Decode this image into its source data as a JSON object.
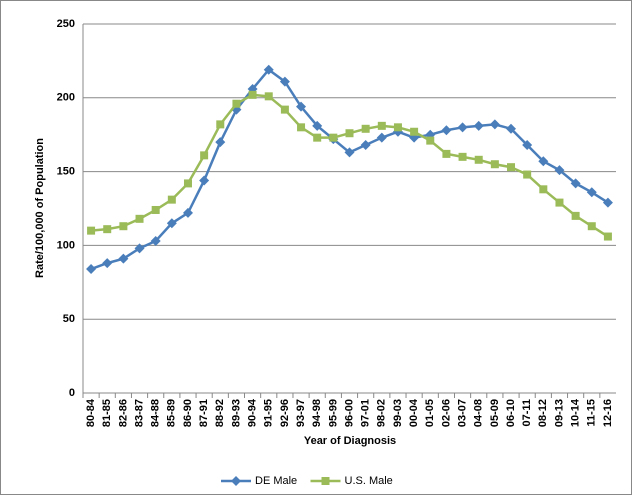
{
  "chart_data": {
    "type": "line",
    "x_label": "Year of Diagnosis",
    "y_label": "Rate/100,000 of Population",
    "categories": [
      "80-84",
      "81-85",
      "82-86",
      "83-87",
      "84-88",
      "85-89",
      "86-90",
      "87-91",
      "88-92",
      "89-93",
      "90-94",
      "91-95",
      "92-96",
      "93-97",
      "94-98",
      "95-99",
      "96-00",
      "97-01",
      "98-02",
      "99-03",
      "00-04",
      "01-05",
      "02-06",
      "03-07",
      "04-08",
      "05-09",
      "06-10",
      "07-11",
      "08-12",
      "09-13",
      "10-14",
      "11-15",
      "12-16"
    ],
    "series": [
      {
        "name": "DE Male",
        "color": "#4a7ebb",
        "marker": "diamond",
        "values": [
          84,
          88,
          91,
          98,
          103,
          115,
          122,
          144,
          170,
          192,
          206,
          219,
          211,
          194,
          181,
          172,
          163,
          168,
          173,
          177,
          173,
          175,
          178,
          180,
          181,
          182,
          179,
          168,
          157,
          151,
          142,
          136,
          129
        ]
      },
      {
        "name": "U.S. Male",
        "color": "#9bbb59",
        "marker": "square",
        "values": [
          110,
          111,
          113,
          118,
          124,
          131,
          142,
          161,
          182,
          196,
          202,
          201,
          192,
          180,
          173,
          173,
          176,
          179,
          181,
          180,
          177,
          171,
          162,
          160,
          158,
          155,
          153,
          148,
          138,
          129,
          120,
          113,
          106
        ]
      }
    ],
    "ylim": [
      0,
      250
    ],
    "yticks": [
      0,
      50,
      100,
      150,
      200,
      250
    ],
    "grid": true,
    "legend": "bottom"
  }
}
